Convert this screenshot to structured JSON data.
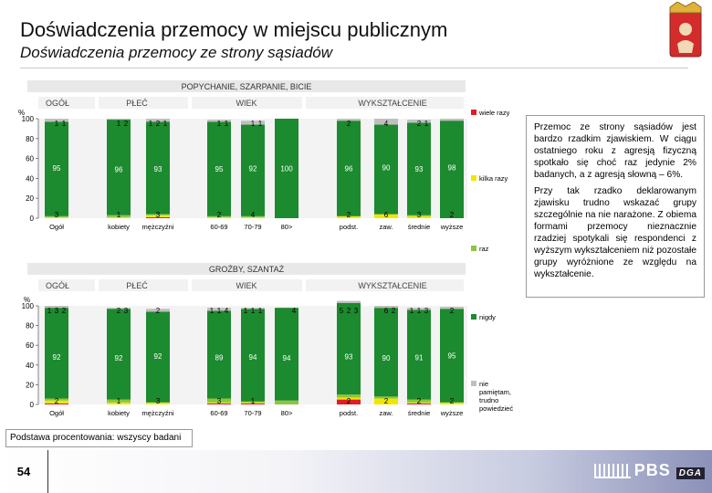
{
  "header": {
    "title": "Doświadczenia przemocy w miejscu publicznym",
    "subtitle": "Doświadczenia przemocy ze strony sąsiadów"
  },
  "legend": [
    "wiele razy",
    "kilka razy",
    "raz",
    "nigdy",
    "nie pamiętam, trudno powiedzieć"
  ],
  "note": {
    "p1": "Przemoc ze strony sąsiadów jest bardzo rzadkim zjawiskiem. W ciągu ostatniego roku z agresją fizyczną spotkało się choć raz jedynie 2% badanych, a z agresją słowną – 6%.",
    "p2": "Przy tak rzadko deklarowanym zjawisku trudno wskazać grupy szczególnie na nie narażone. Z obiema formami przemocy nieznacznie rzadziej spotykali się respondenci z wyższym wykształceniem niż pozostałe grupy wyróżnione ze względu na wykształcenie."
  },
  "footer": {
    "basis": "Podstawa procentowania: wszyscy badani",
    "page": "54",
    "logo": "PBS",
    "logo2": "DGA"
  },
  "colors": {
    "wiele": "#e31b23",
    "kilka": "#f2e600",
    "raz": "#8cc63f",
    "nigdy": "#1c8a2e",
    "nie_wiem": "#bfbfbf"
  },
  "chart_data": [
    {
      "type": "bar",
      "stacked": true,
      "title": "POPYCHANIE, SZARPANIE, BICIE",
      "ylabel": "%",
      "ylim": [
        0,
        100
      ],
      "groups": [
        "OGÓŁ",
        "PŁEĆ",
        "WIEK",
        "WYKSZTAŁCENIE"
      ],
      "categories": [
        "Ogół",
        "kobiety",
        "mężczyźni",
        "60-69",
        "70-79",
        "80>",
        "podst.",
        "zaw.",
        "średnie",
        "wyższe"
      ],
      "series": [
        {
          "name": "wiele razy",
          "values": [
            0,
            0,
            1,
            0,
            0,
            0,
            0,
            0,
            0,
            0
          ]
        },
        {
          "name": "kilka razy",
          "values": [
            1,
            1,
            2,
            1,
            1,
            0,
            2,
            4,
            2,
            0
          ]
        },
        {
          "name": "raz",
          "values": [
            1,
            2,
            1,
            1,
            1,
            0,
            0,
            0,
            1,
            0
          ]
        },
        {
          "name": "nigdy",
          "values": [
            95,
            96,
            93,
            95,
            92,
            100,
            96,
            90,
            93,
            98
          ]
        },
        {
          "name": "nie pamiętam, trudno powiedzieć",
          "values": [
            3,
            1,
            3,
            2,
            4,
            0,
            2,
            6,
            3,
            2
          ]
        }
      ]
    },
    {
      "type": "bar",
      "stacked": true,
      "title": "GROŹBY, SZANTAŻ",
      "ylabel": "%",
      "ylim": [
        0,
        100
      ],
      "groups": [
        "OGÓŁ",
        "PŁEĆ",
        "WIEK",
        "WYKSZTAŁCENIE"
      ],
      "categories": [
        "Ogół",
        "kobiety",
        "mężczyźni",
        "60-69",
        "70-79",
        "80>",
        "podst.",
        "zaw.",
        "średnie",
        "wyższe"
      ],
      "series": [
        {
          "name": "wiele razy",
          "values": [
            1,
            0,
            0,
            1,
            1,
            0,
            5,
            0,
            1,
            0
          ]
        },
        {
          "name": "kilka razy",
          "values": [
            3,
            2,
            2,
            1,
            1,
            0,
            2,
            6,
            1,
            2
          ]
        },
        {
          "name": "raz",
          "values": [
            2,
            3,
            0,
            4,
            1,
            4,
            3,
            2,
            3,
            0
          ]
        },
        {
          "name": "nigdy",
          "values": [
            92,
            92,
            92,
            89,
            94,
            94,
            93,
            90,
            91,
            95
          ]
        },
        {
          "name": "nie pamiętam, trudno powiedzieć",
          "values": [
            2,
            1,
            3,
            3,
            1,
            0,
            2,
            2,
            2,
            2
          ]
        }
      ]
    }
  ]
}
